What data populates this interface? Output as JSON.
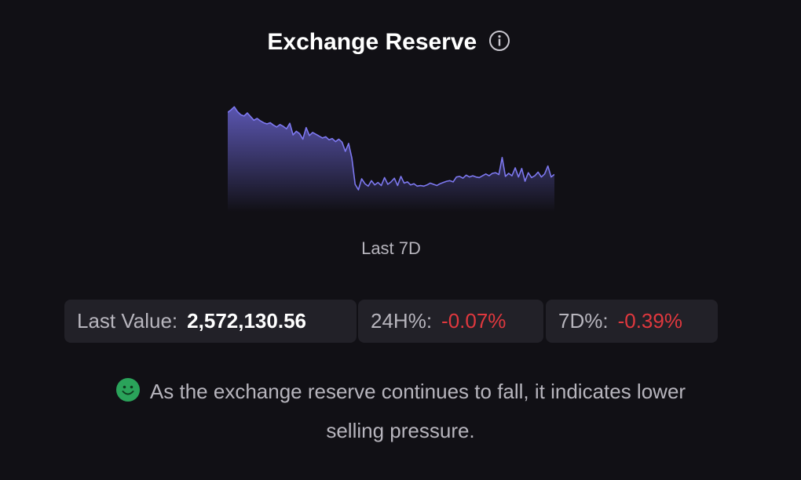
{
  "header": {
    "title": "Exchange Reserve"
  },
  "chart_data": {
    "type": "area",
    "period_label": "Last 7D",
    "values": [
      2582300,
      2582700,
      2583200,
      2582400,
      2581900,
      2581700,
      2582200,
      2581600,
      2581000,
      2581300,
      2580900,
      2580600,
      2580400,
      2580600,
      2580200,
      2579900,
      2580300,
      2580000,
      2579600,
      2580500,
      2578600,
      2579200,
      2578800,
      2577900,
      2579800,
      2578500,
      2579000,
      2578700,
      2578400,
      2578100,
      2578300,
      2577800,
      2578000,
      2577500,
      2577900,
      2577400,
      2575900,
      2577200,
      2574800,
      2570500,
      2569600,
      2571400,
      2570600,
      2570200,
      2571100,
      2570400,
      2570800,
      2570300,
      2571600,
      2570500,
      2570900,
      2571500,
      2570300,
      2571800,
      2570700,
      2570900,
      2570400,
      2570600,
      2570200,
      2570300,
      2570200,
      2570400,
      2570700,
      2570500,
      2570300,
      2570600,
      2570800,
      2571000,
      2571100,
      2570900,
      2571700,
      2571800,
      2571500,
      2572000,
      2571700,
      2571900,
      2571700,
      2571600,
      2571900,
      2572200,
      2571900,
      2572300,
      2572400,
      2572100,
      2574900,
      2571800,
      2572300,
      2571900,
      2573200,
      2571700,
      2573100,
      2571000,
      2572400,
      2571600,
      2571900,
      2572500,
      2571700,
      2572200,
      2573500,
      2571700,
      2572130.56
    ],
    "last_value": "2,572,130.56",
    "change_24h": "-0.07%",
    "change_7d": "-0.39%",
    "ylim": [
      2566000,
      2584000
    ],
    "line_color": "#7d78f0",
    "fill_color_top": "#5e59b8",
    "fill_color_bottom": "#111015"
  },
  "stats": {
    "last_label": "Last Value:",
    "h24_label": "24H%:",
    "d7_label": "7D%:"
  },
  "message": {
    "icon": "smile-icon",
    "text": "As the exchange reserve continues to fall, it indicates lower selling pressure."
  },
  "colors": {
    "background": "#111015",
    "card": "#222128",
    "negative": "#e0383e",
    "positive_icon": "#2aa35a",
    "muted_text": "#b7b5bd"
  }
}
